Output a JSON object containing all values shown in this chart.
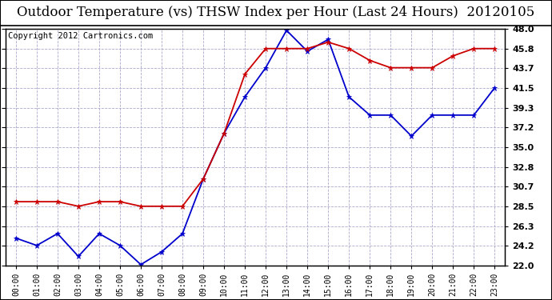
{
  "title": "Outdoor Temperature (vs) THSW Index per Hour (Last 24 Hours)  20120105",
  "copyright": "Copyright 2012 Cartronics.com",
  "hours": [
    "00:00",
    "01:00",
    "02:00",
    "03:00",
    "04:00",
    "05:00",
    "06:00",
    "07:00",
    "08:00",
    "09:00",
    "10:00",
    "11:00",
    "12:00",
    "13:00",
    "14:00",
    "15:00",
    "16:00",
    "17:00",
    "18:00",
    "19:00",
    "20:00",
    "21:00",
    "22:00",
    "23:00"
  ],
  "temp_blue": [
    25.0,
    24.2,
    25.5,
    23.0,
    25.5,
    24.2,
    22.1,
    23.5,
    25.5,
    31.5,
    36.5,
    40.5,
    43.7,
    47.8,
    45.5,
    46.8,
    40.5,
    38.5,
    38.5,
    36.2,
    38.5,
    38.5,
    38.5,
    41.5
  ],
  "thsw_red": [
    29.0,
    29.0,
    29.0,
    28.5,
    29.0,
    29.0,
    28.5,
    28.5,
    28.5,
    31.5,
    36.5,
    43.0,
    45.8,
    45.8,
    45.8,
    46.5,
    45.8,
    44.5,
    43.7,
    43.7,
    43.7,
    45.0,
    45.8,
    45.8
  ],
  "ylim": [
    22.0,
    48.0
  ],
  "yticks": [
    22.0,
    24.2,
    26.3,
    28.5,
    30.7,
    32.8,
    35.0,
    37.2,
    39.3,
    41.5,
    43.7,
    45.8,
    48.0
  ],
  "bg_color": "#ffffff",
  "plot_bg_color": "#ffffff",
  "grid_color": "#aaaacc",
  "blue_color": "#0000cc",
  "red_color": "#cc0000",
  "title_fontsize": 12,
  "copyright_fontsize": 7.5,
  "tick_fontsize": 8,
  "xtick_fontsize": 7
}
